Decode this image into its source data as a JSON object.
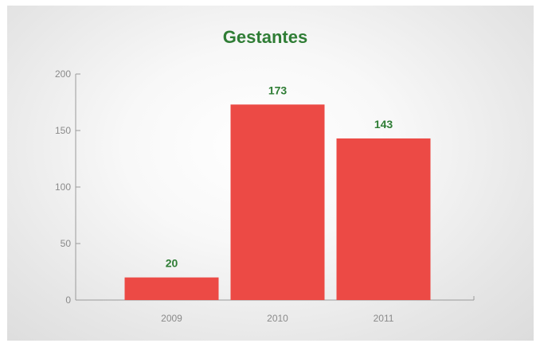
{
  "chart_data": {
    "type": "bar",
    "title": "Gestantes",
    "categories": [
      "2009",
      "2010",
      "2011"
    ],
    "values": [
      20,
      173,
      143
    ],
    "ylim": [
      0,
      200
    ],
    "yticks": [
      0,
      50,
      100,
      150,
      200
    ],
    "xlabel": "",
    "ylabel": "",
    "grid": false,
    "legend": "none",
    "data_labels": true
  },
  "colors": {
    "bar": "#ec4a45",
    "title": "#2f7d35",
    "value_label": "#2f7d35",
    "axis": "#9a9a9a"
  }
}
